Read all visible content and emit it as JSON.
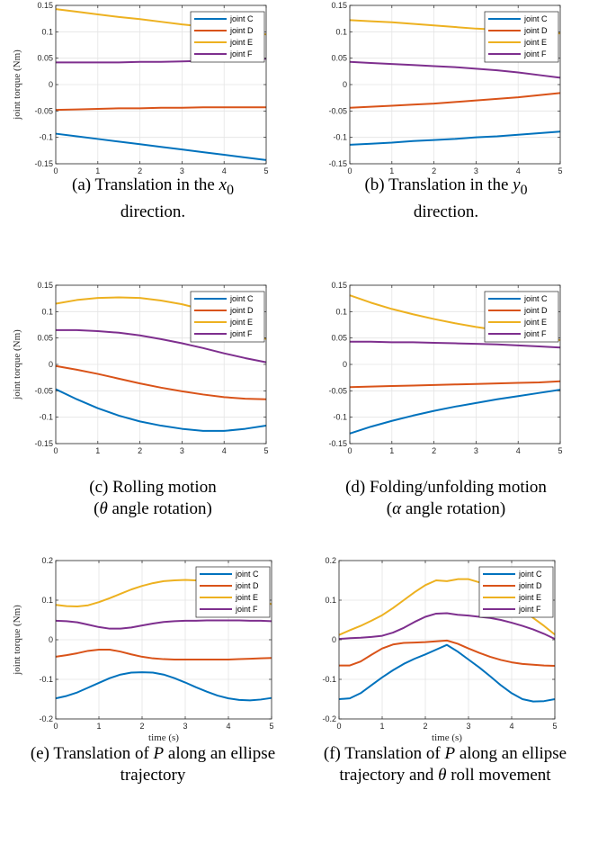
{
  "chart_data": [
    {
      "type": "line",
      "panel": "a",
      "caption_parts": [
        "(a) Translation in the ",
        "x",
        "0",
        " direction."
      ],
      "ylabel": "joint torque (Nm)",
      "xlabel": "",
      "xlim": [
        0,
        5
      ],
      "ylim": [
        -0.15,
        0.15
      ],
      "xticks": [
        "0",
        "1",
        "2",
        "3",
        "4",
        "5"
      ],
      "yticks": [
        "-0.15",
        "-0.1",
        "-0.05",
        "0",
        "0.05",
        "0.1",
        "0.15"
      ],
      "grid": true,
      "legend": "top-right",
      "x": [
        0,
        0.5,
        1,
        1.5,
        2,
        2.5,
        3,
        3.5,
        4,
        4.5,
        5
      ],
      "series": [
        {
          "name": "joint C",
          "color": "#0072BD",
          "values": [
            -0.093,
            -0.098,
            -0.103,
            -0.108,
            -0.113,
            -0.118,
            -0.123,
            -0.128,
            -0.133,
            -0.138,
            -0.143
          ]
        },
        {
          "name": "joint D",
          "color": "#D95319",
          "values": [
            -0.048,
            -0.047,
            -0.046,
            -0.045,
            -0.045,
            -0.044,
            -0.044,
            -0.043,
            -0.043,
            -0.043,
            -0.043
          ]
        },
        {
          "name": "joint E",
          "color": "#EDB120",
          "values": [
            0.143,
            0.138,
            0.133,
            0.128,
            0.124,
            0.119,
            0.114,
            0.11,
            0.105,
            0.1,
            0.095
          ]
        },
        {
          "name": "joint F",
          "color": "#7E2F8E",
          "values": [
            0.042,
            0.042,
            0.042,
            0.042,
            0.043,
            0.043,
            0.044,
            0.045,
            0.046,
            0.047,
            0.049
          ]
        }
      ]
    },
    {
      "type": "line",
      "panel": "b",
      "caption_parts": [
        "(b) Translation in the ",
        "y",
        "0",
        " direction."
      ],
      "ylabel": "",
      "xlabel": "",
      "xlim": [
        0,
        5
      ],
      "ylim": [
        -0.15,
        0.15
      ],
      "xticks": [
        "0",
        "1",
        "2",
        "3",
        "4",
        "5"
      ],
      "yticks": [
        "-0.15",
        "-0.1",
        "-0.05",
        "0",
        "0.05",
        "0.1",
        "0.15"
      ],
      "grid": true,
      "legend": "top-right",
      "x": [
        0,
        0.5,
        1,
        1.5,
        2,
        2.5,
        3,
        3.5,
        4,
        4.5,
        5
      ],
      "series": [
        {
          "name": "joint C",
          "color": "#0072BD",
          "values": [
            -0.114,
            -0.112,
            -0.11,
            -0.107,
            -0.105,
            -0.103,
            -0.1,
            -0.098,
            -0.095,
            -0.092,
            -0.089
          ]
        },
        {
          "name": "joint D",
          "color": "#D95319",
          "values": [
            -0.044,
            -0.042,
            -0.04,
            -0.038,
            -0.036,
            -0.033,
            -0.03,
            -0.027,
            -0.024,
            -0.02,
            -0.016
          ]
        },
        {
          "name": "joint E",
          "color": "#EDB120",
          "values": [
            0.122,
            0.12,
            0.118,
            0.115,
            0.112,
            0.109,
            0.106,
            0.104,
            0.101,
            0.099,
            0.097
          ]
        },
        {
          "name": "joint F",
          "color": "#7E2F8E",
          "values": [
            0.043,
            0.041,
            0.039,
            0.037,
            0.035,
            0.033,
            0.03,
            0.027,
            0.023,
            0.018,
            0.013
          ]
        }
      ]
    },
    {
      "type": "line",
      "panel": "c",
      "caption_parts": [
        "(c) Rolling motion",
        "θ",
        " angle rotation)"
      ],
      "ylabel": "joint torque (Nm)",
      "xlabel": "",
      "xlim": [
        0,
        5
      ],
      "ylim": [
        -0.15,
        0.15
      ],
      "xticks": [
        "0",
        "1",
        "2",
        "3",
        "4",
        "5"
      ],
      "yticks": [
        "-0.15",
        "-0.1",
        "-0.05",
        "0",
        "0.05",
        "0.1",
        "0.15"
      ],
      "grid": true,
      "legend": "top-right",
      "x": [
        0,
        0.5,
        1,
        1.5,
        2,
        2.5,
        3,
        3.5,
        4,
        4.5,
        5
      ],
      "series": [
        {
          "name": "joint C",
          "color": "#0072BD",
          "values": [
            -0.047,
            -0.066,
            -0.083,
            -0.097,
            -0.108,
            -0.116,
            -0.122,
            -0.126,
            -0.126,
            -0.122,
            -0.116
          ]
        },
        {
          "name": "joint D",
          "color": "#D95319",
          "values": [
            -0.003,
            -0.01,
            -0.018,
            -0.027,
            -0.036,
            -0.044,
            -0.051,
            -0.057,
            -0.062,
            -0.065,
            -0.066
          ]
        },
        {
          "name": "joint E",
          "color": "#EDB120",
          "values": [
            0.115,
            0.122,
            0.126,
            0.127,
            0.126,
            0.121,
            0.114,
            0.104,
            0.09,
            0.07,
            0.048
          ]
        },
        {
          "name": "joint F",
          "color": "#7E2F8E",
          "values": [
            0.065,
            0.065,
            0.063,
            0.06,
            0.055,
            0.048,
            0.04,
            0.031,
            0.021,
            0.012,
            0.004
          ]
        }
      ]
    },
    {
      "type": "line",
      "panel": "d",
      "caption_parts": [
        "(d) Folding/unfolding motion",
        "α",
        " angle rotation)"
      ],
      "ylabel": "",
      "xlabel": "",
      "xlim": [
        0,
        5
      ],
      "ylim": [
        -0.15,
        0.15
      ],
      "xticks": [
        "0",
        "1",
        "2",
        "3",
        "4",
        "5"
      ],
      "yticks": [
        "-0.15",
        "-0.1",
        "-0.05",
        "0",
        "0.05",
        "0.1",
        "0.15"
      ],
      "grid": true,
      "legend": "top-right",
      "x": [
        0,
        0.5,
        1,
        1.5,
        2,
        2.5,
        3,
        3.5,
        4,
        4.5,
        5
      ],
      "series": [
        {
          "name": "joint C",
          "color": "#0072BD",
          "values": [
            -0.131,
            -0.118,
            -0.107,
            -0.097,
            -0.088,
            -0.08,
            -0.073,
            -0.066,
            -0.06,
            -0.054,
            -0.048
          ]
        },
        {
          "name": "joint D",
          "color": "#D95319",
          "values": [
            -0.043,
            -0.042,
            -0.041,
            -0.04,
            -0.039,
            -0.038,
            -0.037,
            -0.036,
            -0.035,
            -0.034,
            -0.032
          ]
        },
        {
          "name": "joint E",
          "color": "#EDB120",
          "values": [
            0.131,
            0.117,
            0.105,
            0.095,
            0.086,
            0.078,
            0.071,
            0.065,
            0.058,
            0.052,
            0.046
          ]
        },
        {
          "name": "joint F",
          "color": "#7E2F8E",
          "values": [
            0.043,
            0.043,
            0.042,
            0.042,
            0.041,
            0.04,
            0.039,
            0.038,
            0.036,
            0.034,
            0.032
          ]
        }
      ]
    },
    {
      "type": "line",
      "panel": "e",
      "caption_parts": [
        "(e) Translation of ",
        "P",
        " along an ellipse trajectory"
      ],
      "ylabel": "joint torque (Nm)",
      "xlabel": "time (s)",
      "xlim": [
        0,
        5
      ],
      "ylim": [
        -0.2,
        0.2
      ],
      "xticks": [
        "0",
        "1",
        "2",
        "3",
        "4",
        "5"
      ],
      "yticks": [
        "-0.2",
        "-0.1",
        "0",
        "0.1",
        "0.2"
      ],
      "grid": true,
      "legend": "top-right",
      "x": [
        0,
        0.25,
        0.5,
        0.75,
        1,
        1.25,
        1.5,
        1.75,
        2,
        2.25,
        2.5,
        2.75,
        3,
        3.25,
        3.5,
        3.75,
        4,
        4.25,
        4.5,
        4.75,
        5
      ],
      "series": [
        {
          "name": "joint C",
          "color": "#0072BD",
          "values": [
            -0.148,
            -0.142,
            -0.133,
            -0.121,
            -0.109,
            -0.097,
            -0.088,
            -0.083,
            -0.082,
            -0.083,
            -0.088,
            -0.097,
            -0.108,
            -0.12,
            -0.131,
            -0.141,
            -0.148,
            -0.152,
            -0.153,
            -0.151,
            -0.147
          ]
        },
        {
          "name": "joint D",
          "color": "#D95319",
          "values": [
            -0.043,
            -0.039,
            -0.034,
            -0.028,
            -0.025,
            -0.025,
            -0.03,
            -0.037,
            -0.043,
            -0.047,
            -0.049,
            -0.05,
            -0.05,
            -0.05,
            -0.05,
            -0.05,
            -0.05,
            -0.049,
            -0.048,
            -0.047,
            -0.046
          ]
        },
        {
          "name": "joint E",
          "color": "#EDB120",
          "values": [
            0.088,
            0.085,
            0.084,
            0.087,
            0.095,
            0.105,
            0.116,
            0.127,
            0.136,
            0.143,
            0.148,
            0.15,
            0.151,
            0.15,
            0.146,
            0.138,
            0.127,
            0.113,
            0.102,
            0.095,
            0.09
          ]
        },
        {
          "name": "joint F",
          "color": "#7E2F8E",
          "values": [
            0.048,
            0.047,
            0.044,
            0.038,
            0.032,
            0.028,
            0.028,
            0.031,
            0.036,
            0.041,
            0.045,
            0.047,
            0.048,
            0.048,
            0.049,
            0.049,
            0.049,
            0.049,
            0.048,
            0.048,
            0.047
          ]
        }
      ]
    },
    {
      "type": "line",
      "panel": "f",
      "caption_parts": [
        "(f) Translation of ",
        "P",
        " along an ellipse trajectory and ",
        "θ",
        " roll movement"
      ],
      "ylabel": "",
      "xlabel": "time (s)",
      "xlim": [
        0,
        5
      ],
      "ylim": [
        -0.2,
        0.2
      ],
      "xticks": [
        "0",
        "1",
        "2",
        "3",
        "4",
        "5"
      ],
      "yticks": [
        "-0.2",
        "-0.1",
        "0",
        "0.1",
        "0.2"
      ],
      "grid": true,
      "legend": "top-right",
      "x": [
        0,
        0.25,
        0.5,
        0.75,
        1,
        1.25,
        1.5,
        1.75,
        2,
        2.25,
        2.5,
        2.75,
        3,
        3.25,
        3.5,
        3.75,
        4,
        4.25,
        4.5,
        4.75,
        5
      ],
      "series": [
        {
          "name": "joint C",
          "color": "#0072BD",
          "values": [
            -0.15,
            -0.148,
            -0.135,
            -0.115,
            -0.095,
            -0.077,
            -0.061,
            -0.048,
            -0.037,
            -0.025,
            -0.013,
            -0.03,
            -0.05,
            -0.07,
            -0.092,
            -0.115,
            -0.135,
            -0.15,
            -0.156,
            -0.155,
            -0.15
          ]
        },
        {
          "name": "joint D",
          "color": "#D95319",
          "values": [
            -0.065,
            -0.065,
            -0.055,
            -0.038,
            -0.022,
            -0.012,
            -0.008,
            -0.007,
            -0.006,
            -0.004,
            -0.002,
            -0.01,
            -0.022,
            -0.033,
            -0.043,
            -0.051,
            -0.057,
            -0.061,
            -0.063,
            -0.065,
            -0.066
          ]
        },
        {
          "name": "joint E",
          "color": "#EDB120",
          "values": [
            0.012,
            0.024,
            0.035,
            0.048,
            0.062,
            0.08,
            0.1,
            0.12,
            0.138,
            0.15,
            0.148,
            0.153,
            0.153,
            0.145,
            0.13,
            0.113,
            0.095,
            0.075,
            0.055,
            0.035,
            0.013
          ]
        },
        {
          "name": "joint F",
          "color": "#7E2F8E",
          "values": [
            0.002,
            0.004,
            0.005,
            0.007,
            0.01,
            0.018,
            0.03,
            0.045,
            0.058,
            0.066,
            0.067,
            0.063,
            0.061,
            0.058,
            0.055,
            0.05,
            0.043,
            0.035,
            0.026,
            0.015,
            0.002
          ]
        }
      ]
    }
  ]
}
